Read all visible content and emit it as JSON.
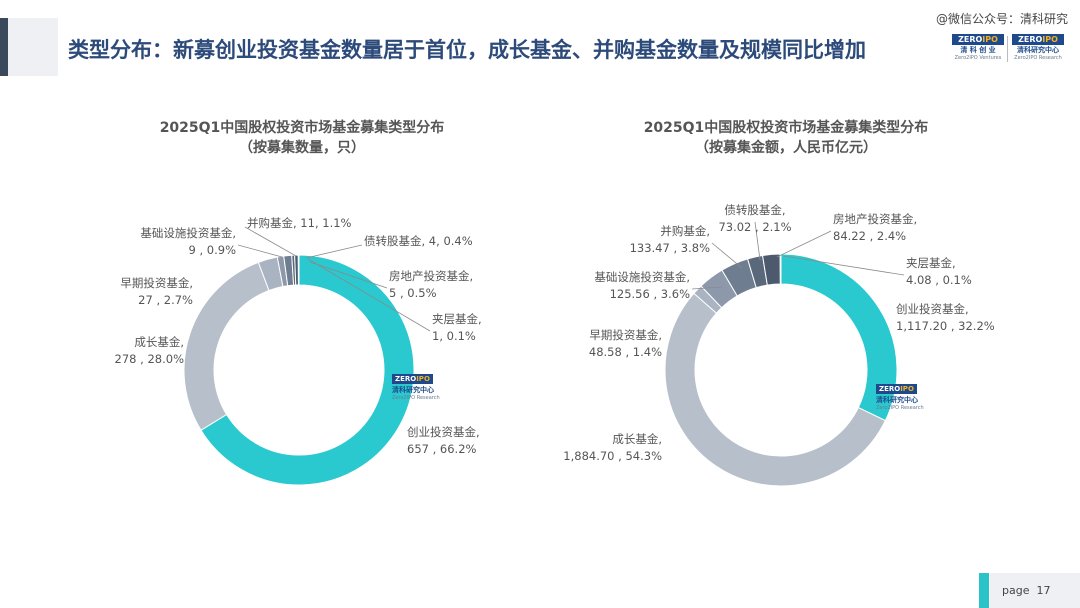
{
  "header": {
    "title": "类型分布：新募创业投资基金数量居于首位，成长基金、并购基金数量及规模同比增加",
    "watermark": "@微信公众号：清科研究"
  },
  "logos": {
    "left": {
      "zero": "ZERO",
      "ipo": "IPO",
      "cn": "清 科 创 业",
      "en": "Zero2IPO Ventures"
    },
    "right": {
      "zero": "ZERO",
      "ipo": "IPO",
      "cn": "清科研究中心",
      "en": "Zero2IPO Research"
    }
  },
  "center_logo": {
    "zero": "ZERO",
    "ipo": "IPO",
    "cn": "清科研究中心",
    "en": "Zero2IPO Research"
  },
  "footer": {
    "page_label": "page",
    "page_number": "17"
  },
  "colors": {
    "vc": "#29c9cf",
    "growth": "#b7bfcb",
    "early": "#a9b3c1",
    "infra": "#8d99ab",
    "mna": "#6f7d91",
    "convertible": "#5a687c",
    "realestate": "#4d5a6e",
    "mezzanine": "#3c4759"
  },
  "chart_data": [
    {
      "type": "pie",
      "donut": true,
      "title": "2025Q1中国股权投资市场基金募集类型分布",
      "subtitle": "（按募集数量，只）",
      "slices": [
        {
          "key": "vc",
          "name": "创业投资基金",
          "value": 657,
          "percent": "66.2%",
          "label_line1": "创业投资基金,",
          "label_line2": "657 , 66.2%"
        },
        {
          "key": "growth",
          "name": "成长基金",
          "value": 278,
          "percent": "28.0%",
          "label_line1": "成长基金,",
          "label_line2": "278 , 28.0%"
        },
        {
          "key": "early",
          "name": "早期投资基金",
          "value": 27,
          "percent": "2.7%",
          "label_line1": "早期投资基金,",
          "label_line2": "27 , 2.7%"
        },
        {
          "key": "infra",
          "name": "基础设施投资基金",
          "value": 9,
          "percent": "0.9%",
          "label_line1": "基础设施投资基金,",
          "label_line2": "9 , 0.9%"
        },
        {
          "key": "mna",
          "name": "并购基金",
          "value": 11,
          "percent": "1.1%",
          "label_line1": "并购基金, 11, 1.1%",
          "label_line2": ""
        },
        {
          "key": "convertible",
          "name": "债转股基金",
          "value": 4,
          "percent": "0.4%",
          "label_line1": "债转股基金, 4, 0.4%",
          "label_line2": ""
        },
        {
          "key": "realestate",
          "name": "房地产投资基金",
          "value": 5,
          "percent": "0.5%",
          "label_line1": "房地产投资基金,",
          "label_line2": "5 , 0.5%"
        },
        {
          "key": "mezzanine",
          "name": "夹层基金",
          "value": 1,
          "percent": "0.1%",
          "label_line1": "夹层基金,",
          "label_line2": "1, 0.1%"
        }
      ]
    },
    {
      "type": "pie",
      "donut": true,
      "title": "2025Q1中国股权投资市场基金募集类型分布",
      "subtitle": "（按募集金额，人民币亿元）",
      "slices": [
        {
          "key": "vc",
          "name": "创业投资基金",
          "value": 1117.2,
          "percent": "32.2%",
          "label_line1": "创业投资基金,",
          "label_line2": "1,117.20 , 32.2%"
        },
        {
          "key": "growth",
          "name": "成长基金",
          "value": 1884.7,
          "percent": "54.3%",
          "label_line1": "成长基金,",
          "label_line2": "1,884.70 , 54.3%"
        },
        {
          "key": "early",
          "name": "早期投资基金",
          "value": 48.58,
          "percent": "1.4%",
          "label_line1": "早期投资基金,",
          "label_line2": "48.58 , 1.4%"
        },
        {
          "key": "infra",
          "name": "基础设施投资基金",
          "value": 125.56,
          "percent": "3.6%",
          "label_line1": "基础设施投资基金,",
          "label_line2": "125.56 , 3.6%"
        },
        {
          "key": "mna",
          "name": "并购基金",
          "value": 133.47,
          "percent": "3.8%",
          "label_line1": "并购基金,",
          "label_line2": "133.47 , 3.8%"
        },
        {
          "key": "convertible",
          "name": "债转股基金",
          "value": 73.02,
          "percent": "2.1%",
          "label_line1": "债转股基金,",
          "label_line2": "73.02 , 2.1%"
        },
        {
          "key": "realestate",
          "name": "房地产投资基金",
          "value": 84.22,
          "percent": "2.4%",
          "label_line1": "房地产投资基金,",
          "label_line2": "84.22 , 2.4%"
        },
        {
          "key": "mezzanine",
          "name": "夹层基金",
          "value": 4.08,
          "percent": "0.1%",
          "label_line1": "夹层基金,",
          "label_line2": "4.08 , 0.1%"
        }
      ]
    }
  ]
}
